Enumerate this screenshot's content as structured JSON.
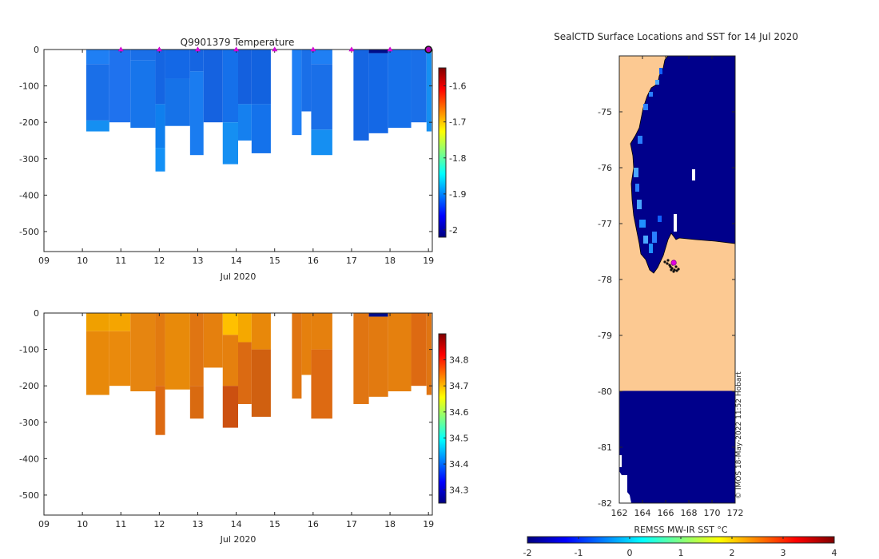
{
  "chart_data": [
    {
      "type": "heatmap",
      "name": "temperature-section",
      "title": "Q9901379  Temperature",
      "xlabel": "Jul 2020",
      "x_ticks": [
        "09",
        "10",
        "11",
        "12",
        "13",
        "14",
        "15",
        "16",
        "17",
        "18",
        "19"
      ],
      "x_range": [
        9,
        19.1
      ],
      "y_ticks": [
        "0",
        "-100",
        "-200",
        "-300",
        "-400",
        "-500"
      ],
      "y_range": [
        -555,
        0
      ],
      "colorbar": {
        "ticks": [
          "-1.6",
          "-1.7",
          "-1.8",
          "-1.9",
          "-2"
        ],
        "tick_values": [
          -1.6,
          -1.7,
          -1.8,
          -1.9,
          -2.0
        ],
        "range": [
          -2.02,
          -1.55
        ],
        "colors": [
          "#00007f",
          "#0000ff",
          "#0080ff",
          "#00ffff",
          "#80ff80",
          "#ffff00",
          "#ff8000",
          "#ff0000",
          "#7f0000"
        ]
      },
      "surface_markers": [
        11,
        12,
        13,
        14,
        15,
        16,
        17,
        18
      ],
      "current_position": 19.0,
      "profiles": [
        {
          "x0": 10.1,
          "x1": 10.7,
          "depth": 225,
          "layers": [
            [
              0,
              40,
              "#1f7ff4"
            ],
            [
              40,
              195,
              "#1a6fe8"
            ],
            [
              195,
              225,
              "#158ff2"
            ]
          ]
        },
        {
          "x0": 10.7,
          "x1": 11.25,
          "depth": 200,
          "layers": [
            [
              0,
              200,
              "#1f72ee"
            ]
          ]
        },
        {
          "x0": 11.25,
          "x1": 11.9,
          "depth": 215,
          "layers": [
            [
              0,
              30,
              "#1a6fe8"
            ],
            [
              30,
              215,
              "#1775eb"
            ]
          ]
        },
        {
          "x0": 11.9,
          "x1": 12.15,
          "depth": 335,
          "layers": [
            [
              0,
              150,
              "#1565e2"
            ],
            [
              150,
              270,
              "#0f7fee"
            ],
            [
              270,
              335,
              "#1390f6"
            ]
          ]
        },
        {
          "x0": 12.15,
          "x1": 12.8,
          "depth": 210,
          "layers": [
            [
              0,
              80,
              "#1468e6"
            ],
            [
              80,
              210,
              "#1672e8"
            ]
          ]
        },
        {
          "x0": 12.8,
          "x1": 13.15,
          "depth": 290,
          "layers": [
            [
              0,
              60,
              "#1565e2"
            ],
            [
              60,
              290,
              "#1a7cf0"
            ]
          ]
        },
        {
          "x0": 13.15,
          "x1": 13.65,
          "depth": 200,
          "layers": [
            [
              0,
              200,
              "#1562e0"
            ]
          ]
        },
        {
          "x0": 13.65,
          "x1": 14.05,
          "depth": 315,
          "layers": [
            [
              0,
              200,
              "#1570ea"
            ],
            [
              200,
              315,
              "#158ff2"
            ]
          ]
        },
        {
          "x0": 14.05,
          "x1": 14.4,
          "depth": 250,
          "layers": [
            [
              0,
              150,
              "#1460de"
            ],
            [
              150,
              250,
              "#1580ef"
            ]
          ]
        },
        {
          "x0": 14.4,
          "x1": 14.9,
          "depth": 285,
          "layers": [
            [
              0,
              150,
              "#1262df"
            ],
            [
              150,
              285,
              "#1472eb"
            ]
          ]
        },
        {
          "x0": 15.45,
          "x1": 15.7,
          "depth": 235,
          "layers": [
            [
              0,
              235,
              "#1f7ff4"
            ]
          ]
        },
        {
          "x0": 15.7,
          "x1": 15.95,
          "depth": 170,
          "layers": [
            [
              0,
              170,
              "#1a6fe8"
            ]
          ]
        },
        {
          "x0": 15.95,
          "x1": 16.5,
          "depth": 290,
          "layers": [
            [
              0,
              40,
              "#1f7ff4"
            ],
            [
              40,
              220,
              "#1a6fe8"
            ],
            [
              220,
              290,
              "#158ff2"
            ]
          ]
        },
        {
          "x0": 17.05,
          "x1": 17.45,
          "depth": 250,
          "layers": [
            [
              0,
              250,
              "#1565e2"
            ]
          ]
        },
        {
          "x0": 17.45,
          "x1": 17.95,
          "depth": 230,
          "layers": [
            [
              0,
              10,
              "#000d8a"
            ],
            [
              10,
              230,
              "#1468e6"
            ]
          ]
        },
        {
          "x0": 17.95,
          "x1": 18.55,
          "depth": 215,
          "layers": [
            [
              0,
              215,
              "#1670ea"
            ]
          ]
        },
        {
          "x0": 18.55,
          "x1": 18.95,
          "depth": 200,
          "layers": [
            [
              0,
              200,
              "#1a6fe8"
            ]
          ]
        },
        {
          "x0": 18.95,
          "x1": 19.08,
          "depth": 225,
          "layers": [
            [
              0,
              225,
              "#158ff2"
            ]
          ]
        }
      ]
    },
    {
      "type": "heatmap",
      "name": "salinity-section",
      "title": "",
      "xlabel": "Jul 2020",
      "x_ticks": [
        "09",
        "10",
        "11",
        "12",
        "13",
        "14",
        "15",
        "16",
        "17",
        "18",
        "19"
      ],
      "x_range": [
        9,
        19.1
      ],
      "y_ticks": [
        "0",
        "-100",
        "-200",
        "-300",
        "-400",
        "-500"
      ],
      "y_range": [
        -555,
        0
      ],
      "colorbar": {
        "ticks": [
          "34.8",
          "34.7",
          "34.6",
          "34.5",
          "34.4",
          "34.3"
        ],
        "tick_values": [
          34.8,
          34.7,
          34.6,
          34.5,
          34.4,
          34.3
        ],
        "range": [
          34.25,
          34.9
        ],
        "colors": [
          "#00007f",
          "#0000ff",
          "#0080ff",
          "#00ffff",
          "#80ff80",
          "#ffff00",
          "#ff8000",
          "#ff0000",
          "#7f0000"
        ]
      },
      "profiles": [
        {
          "x0": 10.1,
          "x1": 10.7,
          "depth": 225,
          "layers": [
            [
              0,
              50,
              "#f0a000"
            ],
            [
              50,
              225,
              "#e8890a"
            ]
          ]
        },
        {
          "x0": 10.7,
          "x1": 11.25,
          "depth": 200,
          "layers": [
            [
              0,
              50,
              "#f5a500"
            ],
            [
              50,
              200,
              "#ea8a0c"
            ]
          ]
        },
        {
          "x0": 11.25,
          "x1": 11.9,
          "depth": 215,
          "layers": [
            [
              0,
              215,
              "#e68510"
            ]
          ]
        },
        {
          "x0": 11.9,
          "x1": 12.15,
          "depth": 335,
          "layers": [
            [
              0,
              200,
              "#e27a10"
            ],
            [
              200,
              335,
              "#dd6a12"
            ]
          ]
        },
        {
          "x0": 12.15,
          "x1": 12.8,
          "depth": 210,
          "layers": [
            [
              0,
              210,
              "#e88a0a"
            ]
          ]
        },
        {
          "x0": 12.8,
          "x1": 13.15,
          "depth": 290,
          "layers": [
            [
              0,
              200,
              "#e07512"
            ],
            [
              200,
              290,
              "#d96a10"
            ]
          ]
        },
        {
          "x0": 13.15,
          "x1": 13.65,
          "depth": 150,
          "layers": [
            [
              0,
              150,
              "#e5800e"
            ]
          ]
        },
        {
          "x0": 13.65,
          "x1": 14.05,
          "depth": 315,
          "layers": [
            [
              0,
              60,
              "#ffc000"
            ],
            [
              60,
              200,
              "#e5800e"
            ],
            [
              200,
              315,
              "#cc5010"
            ]
          ]
        },
        {
          "x0": 14.05,
          "x1": 14.4,
          "depth": 250,
          "layers": [
            [
              0,
              80,
              "#f5a800"
            ],
            [
              80,
              250,
              "#db6a12"
            ]
          ]
        },
        {
          "x0": 14.4,
          "x1": 14.9,
          "depth": 285,
          "layers": [
            [
              0,
              100,
              "#e8880a"
            ],
            [
              100,
              285,
              "#d06010"
            ]
          ]
        },
        {
          "x0": 15.45,
          "x1": 15.7,
          "depth": 235,
          "layers": [
            [
              0,
              235,
              "#e07512"
            ]
          ]
        },
        {
          "x0": 15.7,
          "x1": 15.95,
          "depth": 170,
          "layers": [
            [
              0,
              170,
              "#e5800e"
            ]
          ]
        },
        {
          "x0": 15.95,
          "x1": 16.5,
          "depth": 290,
          "layers": [
            [
              0,
              100,
              "#e5800e"
            ],
            [
              100,
              290,
              "#dd6a12"
            ]
          ]
        },
        {
          "x0": 17.05,
          "x1": 17.45,
          "depth": 250,
          "layers": [
            [
              0,
              250,
              "#e07512"
            ]
          ]
        },
        {
          "x0": 17.45,
          "x1": 17.95,
          "depth": 230,
          "layers": [
            [
              0,
              10,
              "#000d8a"
            ],
            [
              10,
              230,
              "#e27a10"
            ]
          ]
        },
        {
          "x0": 17.95,
          "x1": 18.55,
          "depth": 215,
          "layers": [
            [
              0,
              215,
              "#e5800e"
            ]
          ]
        },
        {
          "x0": 18.55,
          "x1": 18.95,
          "depth": 200,
          "layers": [
            [
              0,
              200,
              "#dd6a12"
            ]
          ]
        },
        {
          "x0": 18.95,
          "x1": 19.08,
          "depth": 225,
          "layers": [
            [
              0,
              225,
              "#e07512"
            ]
          ]
        }
      ]
    },
    {
      "type": "heatmap",
      "name": "sst-map",
      "title": "SealCTD Surface Locations and SST for 14 Jul 2020",
      "x_ticks": [
        "162",
        "164",
        "166",
        "168",
        "170",
        "172"
      ],
      "x_range": [
        162,
        172
      ],
      "y_ticks": [
        "-75",
        "-76",
        "-77",
        "-78",
        "-79",
        "-80",
        "-81",
        "-82"
      ],
      "y_range": [
        -82,
        -74.0
      ],
      "xlabel": "",
      "colorbar": {
        "label": "REMSS MW-IR SST °C",
        "ticks": [
          "-2",
          "-1",
          "0",
          "1",
          "2",
          "3",
          "4"
        ],
        "tick_values": [
          -2,
          -1,
          0,
          1,
          2,
          3,
          4
        ],
        "range": [
          -2,
          4
        ],
        "colors": [
          "#00007f",
          "#0000ff",
          "#0080ff",
          "#00ffff",
          "#80ff80",
          "#ffff00",
          "#ff8000",
          "#ff0000",
          "#7f0000"
        ]
      },
      "land_color": "#fcc992",
      "ocean_color": "#00008b",
      "land_sea_boundary_lat": -80,
      "seal_position": {
        "lon": 166.7,
        "lat": -77.7
      },
      "credit": "© IMOS 18-May-2022 11:52 Hobart"
    }
  ]
}
